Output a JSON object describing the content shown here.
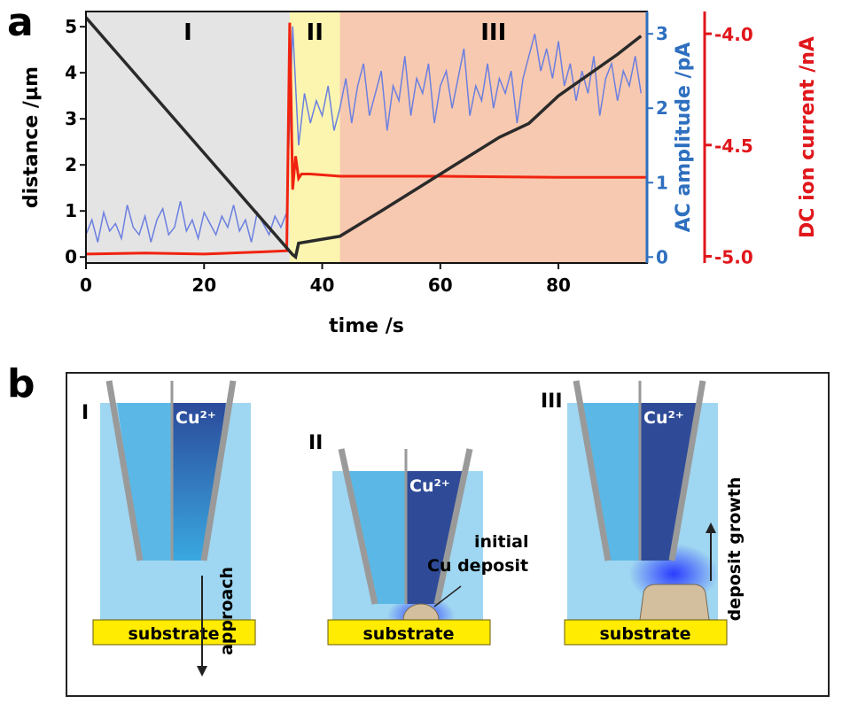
{
  "chart_data": {
    "type": "line",
    "panel_label": "a",
    "xlabel": "time /s",
    "ylabel": "distance /µm",
    "y2label": "AC amplitude /pA",
    "y3label": "DC ion current /nA",
    "xlim": [
      0,
      95
    ],
    "xticks": [
      0,
      20,
      40,
      60,
      80
    ],
    "ylim": [
      -0.13,
      5.33
    ],
    "yticks": [
      0,
      1,
      2,
      3,
      4,
      5
    ],
    "y2lim": [
      -0.08,
      3.3
    ],
    "y2ticks": [
      0,
      1,
      2,
      3
    ],
    "y2color": "#2e6fbf",
    "y3lim": [
      -5.03,
      -3.9
    ],
    "y3ticks": [
      {
        "value": -4.0,
        "label": "-4.0"
      },
      {
        "value": -4.5,
        "label": "-4.5"
      },
      {
        "value": -5.0,
        "label": "-5.0"
      }
    ],
    "y3color": "#e0161b",
    "regions": [
      {
        "label": "I",
        "start": 0,
        "end": 34.5,
        "color": "#e4e4e4"
      },
      {
        "label": "II",
        "start": 34.5,
        "end": 43,
        "color": "#fbf5b0"
      },
      {
        "label": "III",
        "start": 43,
        "end": 95,
        "color": "#f7c9b0"
      }
    ],
    "series": [
      {
        "axis": "y2",
        "color": "#6b7fe0",
        "x": [
          0,
          1,
          2,
          3,
          4,
          5,
          6,
          7,
          8,
          9,
          10,
          11,
          12,
          13,
          14,
          15,
          16,
          17,
          18,
          19,
          20,
          21,
          22,
          23,
          24,
          25,
          26,
          27,
          28,
          29,
          30,
          31,
          32,
          33,
          34,
          35,
          36,
          37,
          38,
          39,
          40,
          41,
          42,
          43,
          44,
          45,
          46,
          47,
          48,
          49,
          50,
          51,
          52,
          53,
          54,
          55,
          56,
          57,
          58,
          59,
          60,
          61,
          62,
          63,
          64,
          65,
          66,
          67,
          68,
          69,
          70,
          71,
          72,
          73,
          74,
          75,
          76,
          77,
          78,
          79,
          80,
          81,
          82,
          83,
          84,
          85,
          86,
          87,
          88,
          89,
          90,
          91,
          92,
          93,
          94
        ],
        "values": [
          0.3,
          0.5,
          0.2,
          0.6,
          0.35,
          0.45,
          0.25,
          0.7,
          0.4,
          0.3,
          0.55,
          0.2,
          0.5,
          0.65,
          0.3,
          0.4,
          0.75,
          0.35,
          0.5,
          0.25,
          0.6,
          0.45,
          0.3,
          0.55,
          0.4,
          0.7,
          0.35,
          0.5,
          0.2,
          0.6,
          0.45,
          0.3,
          0.55,
          0.4,
          0.6,
          3.1,
          1.5,
          2.2,
          1.8,
          2.1,
          1.9,
          2.3,
          1.7,
          2.0,
          2.4,
          1.8,
          2.3,
          2.6,
          1.9,
          2.2,
          2.5,
          1.7,
          2.3,
          2.1,
          2.7,
          1.9,
          2.4,
          2.2,
          2.6,
          1.8,
          2.3,
          2.5,
          2.0,
          2.4,
          2.8,
          1.9,
          2.3,
          2.1,
          2.6,
          2.0,
          2.4,
          2.2,
          2.5,
          1.8,
          2.4,
          2.7,
          3.0,
          2.5,
          2.8,
          2.4,
          2.9,
          2.3,
          2.6,
          2.1,
          2.5,
          2.2,
          2.7,
          1.9,
          2.4,
          2.6,
          2.1,
          2.5,
          2.3,
          2.7,
          2.2
        ]
      },
      {
        "axis": "y3",
        "color": "#f0230f",
        "x": [
          0,
          10,
          20,
          30,
          34,
          34.5,
          35,
          35.5,
          36,
          36.5,
          38,
          43,
          60,
          80,
          95
        ],
        "values": [
          -4.99,
          -4.985,
          -4.99,
          -4.98,
          -4.975,
          -3.95,
          -4.7,
          -4.55,
          -4.65,
          -4.63,
          -4.63,
          -4.64,
          -4.64,
          -4.645,
          -4.645
        ]
      },
      {
        "axis": "y",
        "color": "#2a2a2a",
        "x": [
          0,
          35,
          35.5,
          36,
          43,
          50,
          60,
          70,
          75,
          80,
          90,
          94
        ],
        "values": [
          5.2,
          0.05,
          0.0,
          0.3,
          0.45,
          1.0,
          1.8,
          2.6,
          2.9,
          3.5,
          4.4,
          4.8
        ]
      }
    ]
  },
  "diagram": {
    "panel_label": "b",
    "stages": [
      {
        "label": "I",
        "ion": "Cu²⁺",
        "arrow_label": "approach",
        "substrate": "substrate"
      },
      {
        "label": "II",
        "ion": "Cu²⁺",
        "note_line1": "initial",
        "note_line2": "Cu deposit",
        "substrate": "substrate"
      },
      {
        "label": "III",
        "ion": "Cu²⁺",
        "arrow_label": "deposit growth",
        "substrate": "substrate"
      }
    ]
  }
}
